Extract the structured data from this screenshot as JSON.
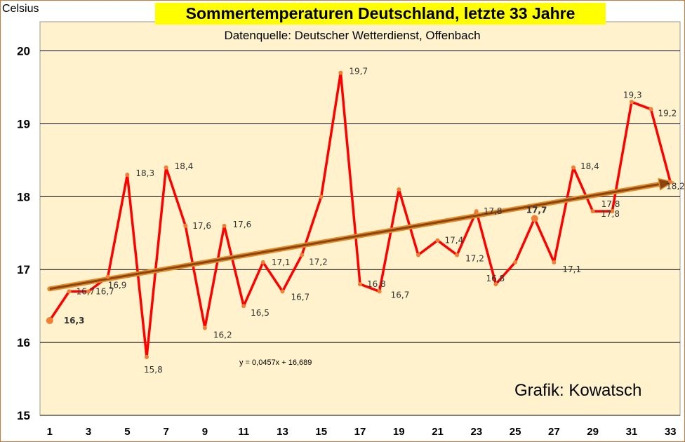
{
  "header": {
    "title": "Sommertemperaturen Deutschland, letzte 33 Jahre",
    "subtitle": "Datenquelle: Deutscher Wetterdienst, Offenbach",
    "unit_label": "Celsius",
    "credit": "Grafik: Kowatsch"
  },
  "trendline": {
    "equation": "y = 0,0457x + 16,689",
    "slope": 0.0457,
    "intercept": 16.689
  },
  "colors": {
    "plot_background": "#fff2cc",
    "series_line": "#ff0000",
    "marker": "#f07f33",
    "trend_line": "#8b4513",
    "trend_outline": "#e08a2a",
    "title_background": "#ffff00",
    "gridline": "#000000",
    "frame": "#c87a3a"
  },
  "chart_data": {
    "type": "line",
    "title": "Sommertemperaturen Deutschland, letzte 33 Jahre",
    "subtitle": "Datenquelle: Deutscher Wetterdienst, Offenbach",
    "ylabel": "Celsius",
    "xlabel": "",
    "xlim": [
      0.5,
      33.5
    ],
    "ylim": [
      15,
      20.4
    ],
    "y_ticks": [
      15,
      16,
      17,
      18,
      19,
      20
    ],
    "x_ticks": [
      1,
      3,
      5,
      7,
      9,
      11,
      13,
      15,
      17,
      19,
      21,
      23,
      25,
      27,
      29,
      31,
      33
    ],
    "grid": "horizontal",
    "legend": "none",
    "x": [
      1,
      2,
      3,
      4,
      5,
      6,
      7,
      8,
      9,
      10,
      11,
      12,
      13,
      14,
      15,
      16,
      17,
      18,
      19,
      20,
      21,
      22,
      23,
      24,
      25,
      26,
      27,
      28,
      29,
      30,
      31,
      32,
      33
    ],
    "series": [
      {
        "values": [
          16.3,
          16.7,
          16.7,
          16.9,
          18.3,
          15.8,
          18.4,
          17.6,
          16.2,
          17.6,
          16.5,
          17.1,
          16.7,
          17.2,
          18.0,
          19.7,
          16.8,
          16.7,
          18.1,
          17.2,
          17.4,
          17.2,
          17.8,
          16.8,
          17.1,
          17.7,
          17.1,
          18.4,
          17.8,
          17.8,
          19.3,
          19.2,
          18.2
        ]
      }
    ],
    "data_labels": [
      {
        "x": 1,
        "text": "16,3"
      },
      {
        "x": 2,
        "text": "16,7"
      },
      {
        "x": 3,
        "text": "16,7"
      },
      {
        "x": 4,
        "text": "16,9"
      },
      {
        "x": 5,
        "text": "18,3"
      },
      {
        "x": 6,
        "text": "15,8"
      },
      {
        "x": 7,
        "text": "18,4"
      },
      {
        "x": 8,
        "text": "17,6"
      },
      {
        "x": 9,
        "text": "16,2"
      },
      {
        "x": 10,
        "text": "17,6"
      },
      {
        "x": 11,
        "text": "16,5"
      },
      {
        "x": 12,
        "text": "17,1"
      },
      {
        "x": 13,
        "text": "16,7"
      },
      {
        "x": 14,
        "text": "17,2"
      },
      {
        "x": 16,
        "text": "19,7"
      },
      {
        "x": 17,
        "text": "16,8"
      },
      {
        "x": 18,
        "text": "16,7"
      },
      {
        "x": 21,
        "text": "17,4"
      },
      {
        "x": 22,
        "text": "17,2"
      },
      {
        "x": 23,
        "text": "17,8"
      },
      {
        "x": 24,
        "text": "16,8"
      },
      {
        "x": 26,
        "text": "17,7"
      },
      {
        "x": 27,
        "text": "17,1"
      },
      {
        "x": 28,
        "text": "18,4"
      },
      {
        "x": 29,
        "text": "17,8"
      },
      {
        "x": 30,
        "text": "17,8"
      },
      {
        "x": 31,
        "text": "19,3"
      },
      {
        "x": 32,
        "text": "19,2"
      },
      {
        "x": 33,
        "text": "18,2"
      }
    ]
  }
}
